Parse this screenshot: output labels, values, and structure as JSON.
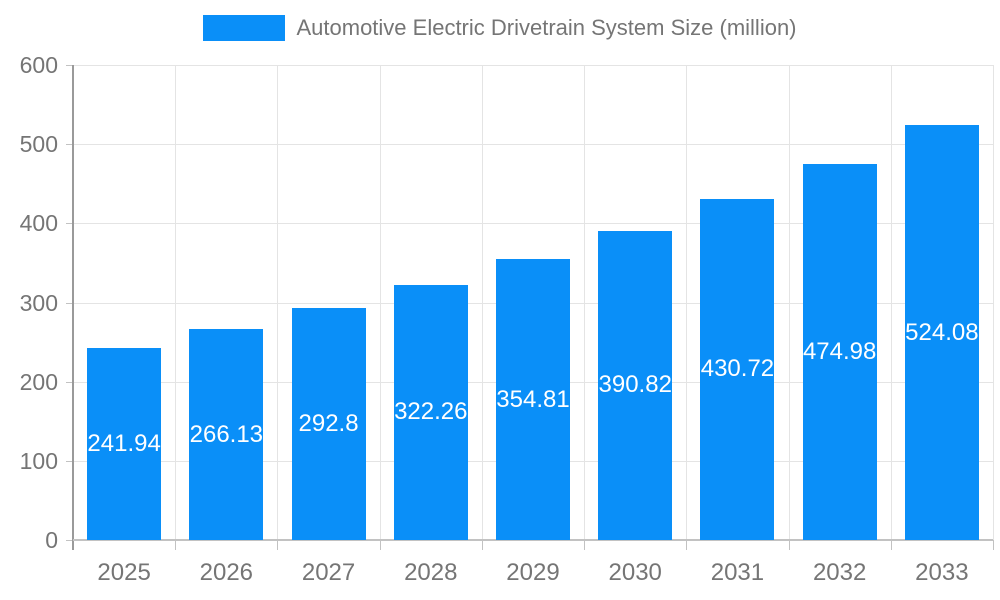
{
  "chart_data": {
    "type": "bar",
    "title": "Automotive Electric Drivetrain System Size (million)",
    "series_name": "Automotive Electric Drivetrain System Size (million)",
    "categories": [
      "2025",
      "2026",
      "2027",
      "2028",
      "2029",
      "2030",
      "2031",
      "2032",
      "2033"
    ],
    "values": [
      241.94,
      266.13,
      292.8,
      322.26,
      354.81,
      390.82,
      430.72,
      474.98,
      524.08
    ],
    "xlabel": "",
    "ylabel": "",
    "ylim": [
      0,
      600
    ],
    "ytick_step": 100,
    "y_tick_labels": [
      "0",
      "100",
      "200",
      "300",
      "400",
      "500",
      "600"
    ],
    "grid": true,
    "legend_position": "top-center",
    "value_label_position": "inside-middle"
  },
  "colors": {
    "bar": "#0A8FF8",
    "legend_text": "#757575",
    "axis_text": "#757575",
    "value_label_text": "#ffffff",
    "gridline": "#e4e4e4",
    "axis_line": "#9a9a9a",
    "background": "#ffffff"
  }
}
